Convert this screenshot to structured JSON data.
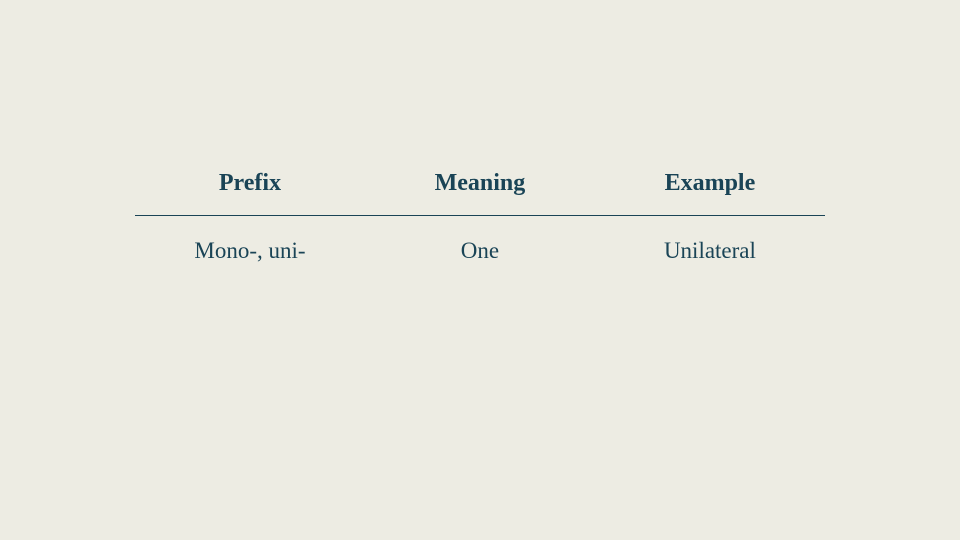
{
  "table": {
    "type": "table",
    "background_color": "#edece3",
    "text_color": "#1a4456",
    "divider_color": "#1a4456",
    "header_fontsize": 24,
    "header_fontweight": "bold",
    "cell_fontsize": 23,
    "cell_fontweight": "normal",
    "columns": [
      "Prefix",
      "Meaning",
      "Example"
    ],
    "rows": [
      [
        "Mono-, uni-",
        "One",
        "Unilateral"
      ]
    ]
  }
}
